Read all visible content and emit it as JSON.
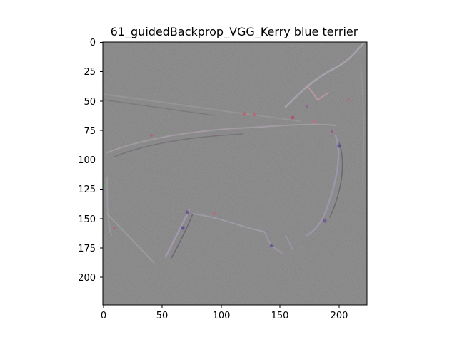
{
  "figure": {
    "title": "61_guidedBackprop_VGG_Kerry blue terrier",
    "image_description_hidden": "",
    "background_color": "#808080",
    "axes": {
      "x_ticks": [
        0,
        50,
        100,
        150,
        200
      ],
      "y_ticks": [
        0,
        25,
        50,
        75,
        100,
        125,
        150,
        175,
        200
      ],
      "x_range": [
        0,
        224
      ],
      "y_range": [
        224,
        0
      ]
    },
    "x_tick_labels": [
      "0",
      "50",
      "100",
      "150",
      "200"
    ],
    "y_tick_labels": [
      "0",
      "25",
      "50",
      "75",
      "100",
      "125",
      "150",
      "175",
      "200"
    ]
  }
}
